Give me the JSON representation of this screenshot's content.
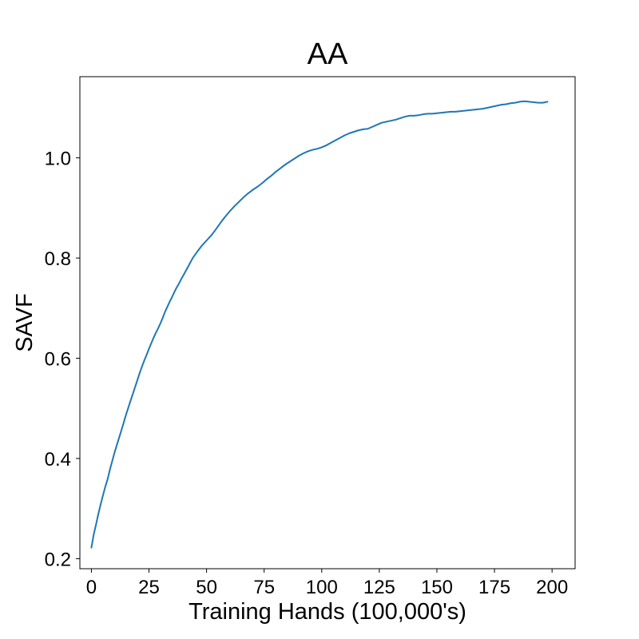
{
  "chart_data": {
    "type": "line",
    "title": "AA",
    "xlabel": "Training Hands (100,000's)",
    "ylabel": "SAVF",
    "xlim": [
      -5,
      210
    ],
    "ylim": [
      0.18,
      1.162
    ],
    "xticks": [
      0,
      25,
      50,
      75,
      100,
      125,
      150,
      175,
      200
    ],
    "yticks": [
      0.2,
      0.4,
      0.6,
      0.8,
      1.0
    ],
    "ytick_labels": [
      "0.2",
      "0.4",
      "0.6",
      "0.8",
      "1.0"
    ],
    "grid": false,
    "legend": false,
    "series": [
      {
        "color": "#1f77b4",
        "x": [
          0,
          1,
          2,
          3,
          4,
          5,
          6,
          7,
          8,
          9,
          10,
          11,
          12,
          13,
          14,
          15,
          16,
          17,
          18,
          19,
          20,
          21,
          22,
          23,
          24,
          25,
          26,
          27,
          28,
          29,
          30,
          31,
          32,
          33,
          34,
          35,
          36,
          37,
          38,
          39,
          40,
          42,
          44,
          46,
          48,
          50,
          52,
          54,
          56,
          58,
          60,
          62,
          64,
          66,
          68,
          70,
          72,
          74,
          76,
          78,
          80,
          82,
          84,
          86,
          88,
          90,
          92,
          94,
          96,
          98,
          100,
          102,
          104,
          106,
          108,
          110,
          112,
          114,
          116,
          118,
          120,
          122,
          124,
          126,
          128,
          130,
          132,
          134,
          136,
          138,
          140,
          142,
          144,
          146,
          148,
          150,
          152,
          154,
          156,
          158,
          160,
          162,
          164,
          166,
          168,
          170,
          172,
          174,
          176,
          178,
          180,
          182,
          184,
          186,
          188,
          190,
          192,
          194,
          196,
          198
        ],
        "values": [
          0.222,
          0.248,
          0.268,
          0.289,
          0.308,
          0.326,
          0.343,
          0.358,
          0.377,
          0.394,
          0.411,
          0.426,
          0.441,
          0.456,
          0.471,
          0.487,
          0.501,
          0.515,
          0.529,
          0.543,
          0.557,
          0.571,
          0.584,
          0.596,
          0.607,
          0.619,
          0.63,
          0.641,
          0.651,
          0.66,
          0.67,
          0.681,
          0.693,
          0.703,
          0.713,
          0.722,
          0.732,
          0.741,
          0.749,
          0.758,
          0.766,
          0.783,
          0.8,
          0.813,
          0.825,
          0.835,
          0.845,
          0.857,
          0.87,
          0.882,
          0.893,
          0.903,
          0.912,
          0.921,
          0.929,
          0.936,
          0.942,
          0.949,
          0.957,
          0.964,
          0.972,
          0.979,
          0.986,
          0.992,
          0.998,
          1.004,
          1.009,
          1.013,
          1.016,
          1.018,
          1.021,
          1.025,
          1.03,
          1.035,
          1.04,
          1.045,
          1.049,
          1.052,
          1.055,
          1.057,
          1.058,
          1.062,
          1.066,
          1.07,
          1.072,
          1.074,
          1.076,
          1.079,
          1.082,
          1.084,
          1.084,
          1.085,
          1.087,
          1.088,
          1.088,
          1.089,
          1.09,
          1.091,
          1.092,
          1.092,
          1.093,
          1.094,
          1.095,
          1.096,
          1.097,
          1.098,
          1.1,
          1.102,
          1.104,
          1.106,
          1.107,
          1.109,
          1.11,
          1.112,
          1.113,
          1.112,
          1.111,
          1.11,
          1.11,
          1.112
        ]
      }
    ]
  }
}
